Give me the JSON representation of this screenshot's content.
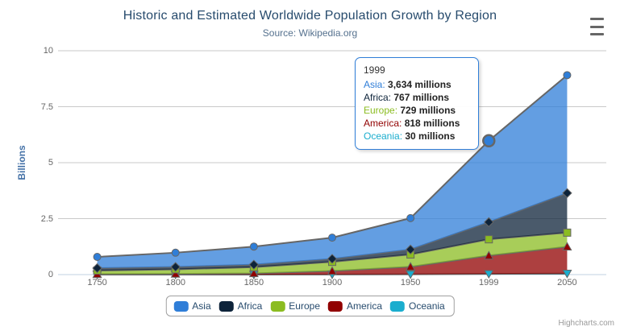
{
  "chart": {
    "title": "Historic and Estimated Worldwide Population Growth by Region",
    "subtitle": "Source: Wikipedia.org",
    "y_axis_title": "Billions",
    "credits": "Highcharts.com"
  },
  "chart_data": {
    "type": "area",
    "stacking": "normal",
    "title": "Historic and Estimated Worldwide Population Growth by Region",
    "subtitle": "Source: Wikipedia.org",
    "xlabel": "",
    "ylabel": "Billions",
    "unit": "millions",
    "categories": [
      "1750",
      "1800",
      "1850",
      "1900",
      "1950",
      "1999",
      "2050"
    ],
    "series": [
      {
        "name": "Asia",
        "color": "#2f7ed8",
        "marker": "circle",
        "values": [
          502,
          635,
          809,
          947,
          1402,
          3634,
          5268
        ]
      },
      {
        "name": "Africa",
        "color": "#0d233a",
        "marker": "diamond",
        "values": [
          106,
          107,
          111,
          133,
          221,
          767,
          1766
        ]
      },
      {
        "name": "Europe",
        "color": "#8bbc21",
        "marker": "square",
        "values": [
          163,
          203,
          276,
          408,
          547,
          729,
          628
        ]
      },
      {
        "name": "America",
        "color": "#910000",
        "marker": "triangle",
        "values": [
          18,
          31,
          54,
          156,
          339,
          818,
          1201
        ]
      },
      {
        "name": "Oceania",
        "color": "#1aadce",
        "marker": "triangle-down",
        "values": [
          2,
          2,
          2,
          6,
          13,
          30,
          46
        ]
      }
    ],
    "ylim": [
      0,
      10
    ],
    "yticks": [
      0,
      2.5,
      5,
      7.5,
      10
    ],
    "ytick_labels": [
      "0",
      "2.5",
      "5",
      "7.5",
      "10"
    ],
    "grid": true,
    "legend_position": "bottom",
    "fill_opacity": 0.75,
    "line_color": "#666666",
    "grid_color": "#C9C9C9",
    "axis_line_color": "#C0D0E0"
  },
  "tooltip": {
    "visible": true,
    "category": "1999",
    "hover_series": "Asia",
    "hover_point_index": 5,
    "border_color": "#2f7ed8",
    "rows": [
      {
        "name": "Asia",
        "color": "#2f7ed8",
        "value": "3,634 millions"
      },
      {
        "name": "Africa",
        "color": "#0d233a",
        "value": "767 millions"
      },
      {
        "name": "Europe",
        "color": "#8bbc21",
        "value": "729 millions"
      },
      {
        "name": "America",
        "color": "#910000",
        "value": "818 millions"
      },
      {
        "name": "Oceania",
        "color": "#1aadce",
        "value": "30 millions"
      }
    ]
  }
}
